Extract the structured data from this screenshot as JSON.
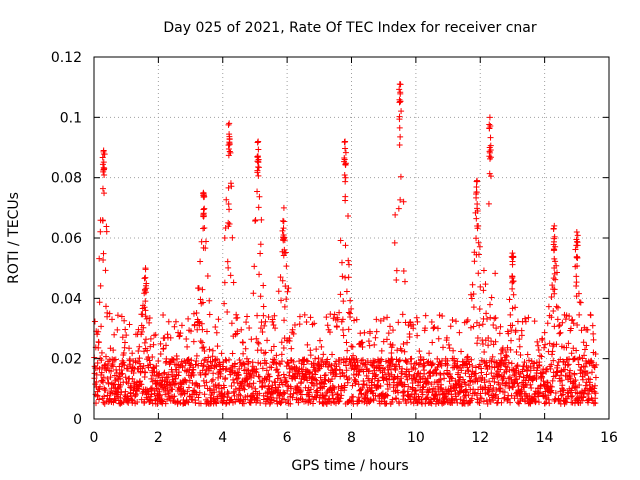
{
  "chart_data": {
    "type": "scatter",
    "title": "Day 025 of 2021, Rate Of TEC Index for receiver cnar",
    "xlabel": "GPS time / hours",
    "ylabel": "ROTI / TECUs",
    "xlim": [
      0,
      16
    ],
    "ylim": [
      0,
      0.12
    ],
    "xticks": [
      0,
      2,
      4,
      6,
      8,
      10,
      12,
      14,
      16
    ],
    "xtick_labels": [
      "0",
      "2",
      "4",
      "6",
      "8",
      "10",
      "12",
      "14",
      "16"
    ],
    "yticks": [
      0,
      0.02,
      0.04,
      0.06,
      0.08,
      0.1,
      0.12
    ],
    "ytick_labels": [
      "0",
      "0.02",
      "0.04",
      "0.06",
      "0.08",
      "0.1",
      "0.12"
    ],
    "grid": true,
    "marker": "+",
    "color": "#ff0000",
    "x_extent": [
      0,
      15.6
    ],
    "baseline_band": [
      0.005,
      0.02
    ],
    "peaks": [
      {
        "x": 0.3,
        "y": 0.089
      },
      {
        "x": 1.6,
        "y": 0.05
      },
      {
        "x": 3.4,
        "y": 0.075
      },
      {
        "x": 4.2,
        "y": 0.098
      },
      {
        "x": 5.1,
        "y": 0.092
      },
      {
        "x": 5.9,
        "y": 0.07
      },
      {
        "x": 7.8,
        "y": 0.092
      },
      {
        "x": 9.5,
        "y": 0.111
      },
      {
        "x": 11.9,
        "y": 0.079
      },
      {
        "x": 12.3,
        "y": 0.1
      },
      {
        "x": 13.0,
        "y": 0.055
      },
      {
        "x": 14.3,
        "y": 0.064
      },
      {
        "x": 15.0,
        "y": 0.062
      }
    ]
  }
}
